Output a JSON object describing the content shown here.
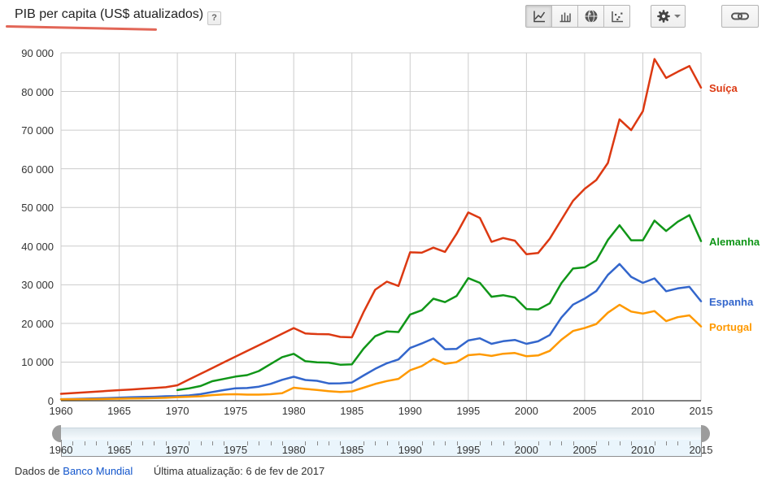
{
  "header": {
    "title": "PIB per capita (US$ atualizados)",
    "help_label": "?"
  },
  "toolbar": {
    "chart_type_buttons": [
      {
        "id": "line",
        "icon": "line-chart-icon",
        "active": true
      },
      {
        "id": "bar",
        "icon": "bar-chart-icon",
        "active": false
      },
      {
        "id": "map",
        "icon": "globe-icon",
        "active": false
      },
      {
        "id": "scatter",
        "icon": "scatter-icon",
        "active": false
      }
    ],
    "gear_button": {
      "icon": "gear-icon",
      "has_dropdown": true
    },
    "link_button": {
      "icon": "link-icon"
    }
  },
  "chart_data": {
    "type": "line",
    "title": "PIB per capita (US$ atualizados)",
    "xlabel": "",
    "ylabel": "",
    "xlim": [
      1960,
      2015
    ],
    "ylim": [
      0,
      90000
    ],
    "grid": true,
    "legend_position": "right-end-labels",
    "x_ticks": [
      1960,
      1965,
      1970,
      1975,
      1980,
      1985,
      1990,
      1995,
      2000,
      2005,
      2010,
      2015
    ],
    "y_ticks": [
      0,
      10000,
      20000,
      30000,
      40000,
      50000,
      60000,
      70000,
      80000,
      90000
    ],
    "y_tick_labels": [
      "0",
      "10 000",
      "20 000",
      "30 000",
      "40 000",
      "50 000",
      "60 000",
      "70 000",
      "80 000",
      "90 000"
    ],
    "series": [
      {
        "id": "suica",
        "name": "Suíça",
        "color": "#dc3912",
        "x_start": 1960,
        "values": [
          1790,
          1980,
          2170,
          2330,
          2550,
          2740,
          2910,
          3100,
          3280,
          3490,
          4000,
          5480,
          6960,
          8440,
          9920,
          11400,
          12880,
          14360,
          15840,
          17320,
          18800,
          17400,
          17250,
          17200,
          16500,
          16400,
          22900,
          28700,
          30800,
          29700,
          38400,
          38300,
          39600,
          38500,
          43200,
          48700,
          47300,
          41100,
          42100,
          41400,
          37900,
          38200,
          41900,
          46800,
          51700,
          54800,
          57100,
          61500,
          72800,
          70000,
          74900,
          88400,
          83500,
          85100,
          86600,
          81000
        ]
      },
      {
        "id": "alemanha",
        "name": "Alemanha",
        "color": "#109618",
        "x_start": 1970,
        "values": [
          2750,
          3190,
          3810,
          5050,
          5640,
          6240,
          6630,
          7680,
          9480,
          11280,
          12140,
          10210,
          9920,
          9860,
          9310,
          9430,
          13460,
          16680,
          17930,
          17760,
          22300,
          23400,
          26400,
          25500,
          27100,
          31700,
          30500,
          26900,
          27300,
          26700,
          23700,
          23600,
          25200,
          30400,
          34200,
          34500,
          36300,
          41600,
          45400,
          41500,
          41500,
          46600,
          43900,
          46300,
          48000,
          41300
        ]
      },
      {
        "id": "espanha",
        "name": "Espanha",
        "color": "#3366cc",
        "x_start": 1960,
        "values": [
          400,
          450,
          520,
          610,
          680,
          780,
          890,
          970,
          1030,
          1150,
          1210,
          1360,
          1710,
          2250,
          2750,
          3210,
          3280,
          3630,
          4360,
          5400,
          6210,
          5370,
          5160,
          4480,
          4490,
          4700,
          6510,
          8240,
          9700,
          10680,
          13650,
          14810,
          16110,
          13340,
          13420,
          15580,
          16160,
          14730,
          15390,
          15720,
          14710,
          15370,
          17000,
          21510,
          24860,
          26420,
          28370,
          32550,
          35370,
          32040,
          30500,
          31640,
          28320,
          29060,
          29460,
          25730
        ]
      },
      {
        "id": "portugal",
        "name": "Portugal",
        "color": "#ff9900",
        "x_start": 1960,
        "values": [
          360,
          380,
          400,
          430,
          470,
          520,
          570,
          620,
          680,
          750,
          930,
          1020,
          1160,
          1450,
          1630,
          1690,
          1570,
          1570,
          1680,
          1960,
          3370,
          3050,
          2790,
          2480,
          2270,
          2420,
          3370,
          4340,
          5090,
          5660,
          7890,
          8960,
          10830,
          9530,
          9980,
          11780,
          12020,
          11580,
          12150,
          12340,
          11500,
          11720,
          12880,
          15770,
          18050,
          18790,
          19820,
          22780,
          24820,
          23060,
          22540,
          23200,
          20580,
          21620,
          22080,
          19220
        ]
      }
    ]
  },
  "slider": {
    "min_year": 1960,
    "max_year": 2015,
    "selected_start": 1960,
    "selected_end": 2015,
    "tick_labels": [
      "1960",
      "1965",
      "1970",
      "1975",
      "1980",
      "1985",
      "1990",
      "1995",
      "2000",
      "2005",
      "2010",
      "2015"
    ]
  },
  "footer": {
    "source_prefix": "Dados de",
    "source_link": "Banco Mundial",
    "updated": "Última atualização: 6 de fev de 2017"
  }
}
